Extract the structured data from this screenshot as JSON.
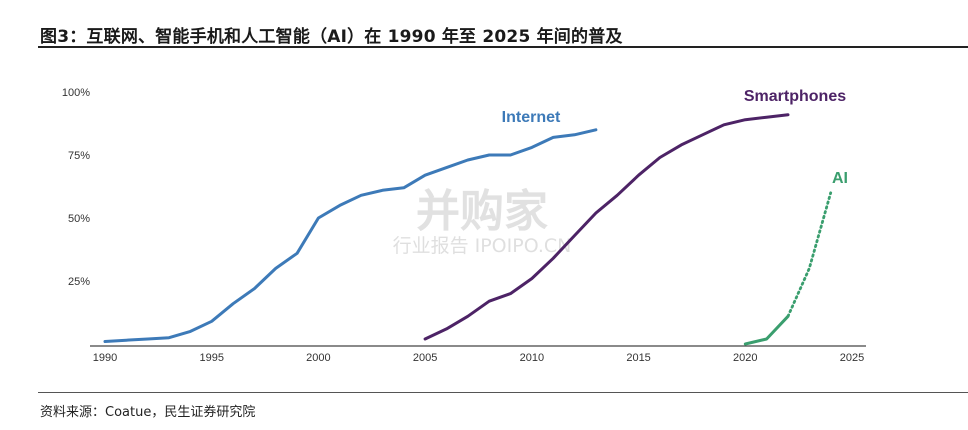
{
  "figure": {
    "title": "图3：互联网、智能手机和人工智能（AI）在 1990 年至 2025 年间的普及",
    "source": "资料来源：Coatue，民生证券研究院"
  },
  "watermark": {
    "main": "并购家",
    "sub": "行业报告 IPOIPO.CN"
  },
  "chart_data": {
    "type": "line",
    "title": "",
    "xlabel": "",
    "ylabel": "",
    "xlim": [
      1990,
      2025
    ],
    "ylim": [
      0,
      100
    ],
    "x_ticks": [
      1990,
      1995,
      2000,
      2005,
      2010,
      2015,
      2020,
      2025
    ],
    "x_tick_labels": [
      "1990",
      "1995",
      "2000",
      "2005",
      "2010",
      "2015",
      "2020",
      "2025"
    ],
    "y_ticks": [
      25,
      50,
      75,
      100
    ],
    "y_tick_labels": [
      "25%",
      "50%",
      "75%",
      "100%"
    ],
    "grid": false,
    "legend": "none",
    "series": [
      {
        "name": "Internet",
        "color": "#3d7ab8",
        "style": "solid",
        "points": [
          [
            1990,
            1
          ],
          [
            1991,
            1.5
          ],
          [
            1992,
            2
          ],
          [
            1993,
            2.5
          ],
          [
            1994,
            5
          ],
          [
            1995,
            9
          ],
          [
            1996,
            16
          ],
          [
            1997,
            22
          ],
          [
            1998,
            30
          ],
          [
            1999,
            36
          ],
          [
            2000,
            50
          ],
          [
            2001,
            55
          ],
          [
            2002,
            59
          ],
          [
            2003,
            61
          ],
          [
            2004,
            62
          ],
          [
            2005,
            67
          ],
          [
            2006,
            70
          ],
          [
            2007,
            73
          ],
          [
            2008,
            75
          ],
          [
            2009,
            75
          ],
          [
            2010,
            78
          ],
          [
            2011,
            82
          ],
          [
            2012,
            83
          ],
          [
            2013,
            85
          ]
        ]
      },
      {
        "name": "Smartphones",
        "color": "#4d2366",
        "style": "solid",
        "points": [
          [
            2005,
            2
          ],
          [
            2006,
            6
          ],
          [
            2007,
            11
          ],
          [
            2008,
            17
          ],
          [
            2009,
            20
          ],
          [
            2010,
            26
          ],
          [
            2011,
            34
          ],
          [
            2012,
            43
          ],
          [
            2013,
            52
          ],
          [
            2014,
            59
          ],
          [
            2015,
            67
          ],
          [
            2016,
            74
          ],
          [
            2017,
            79
          ],
          [
            2018,
            83
          ],
          [
            2019,
            87
          ],
          [
            2020,
            89
          ],
          [
            2021,
            90
          ],
          [
            2022,
            91
          ]
        ]
      },
      {
        "name": "AI",
        "color": "#3a9e6e",
        "style": "solid",
        "points": [
          [
            2020,
            0
          ],
          [
            2021,
            2
          ],
          [
            2022,
            11
          ]
        ]
      },
      {
        "name": "AI",
        "color": "#3a9e6e",
        "style": "dotted",
        "points": [
          [
            2022,
            11
          ],
          [
            2023,
            30
          ],
          [
            2024,
            60
          ]
        ]
      }
    ]
  }
}
